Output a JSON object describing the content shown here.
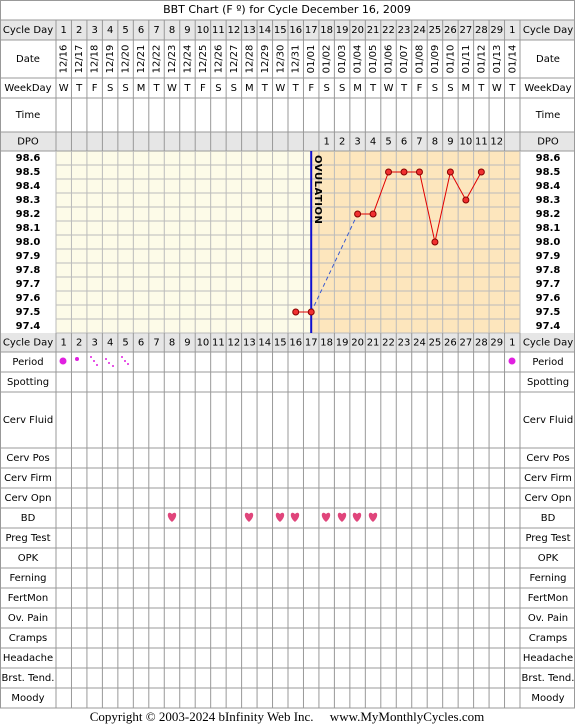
{
  "title": "BBT Chart (F º) for Cycle December 16, 2009",
  "chart_data": {
    "type": "line",
    "categories": [
      1,
      2,
      3,
      4,
      5,
      6,
      7,
      8,
      9,
      10,
      11,
      12,
      13,
      14,
      15,
      16,
      17,
      18,
      19,
      20,
      21,
      22,
      23,
      24,
      25,
      26,
      27,
      28,
      29,
      1
    ],
    "dates": [
      "12/16",
      "12/17",
      "12/18",
      "12/19",
      "12/20",
      "12/21",
      "12/22",
      "12/23",
      "12/24",
      "12/25",
      "12/26",
      "12/27",
      "12/28",
      "12/29",
      "12/30",
      "12/31",
      "01/01",
      "01/02",
      "01/03",
      "01/04",
      "01/05",
      "01/06",
      "01/07",
      "01/08",
      "01/09",
      "01/10",
      "01/11",
      "01/12",
      "01/13",
      "01/14"
    ],
    "weekdays": [
      "W",
      "T",
      "F",
      "S",
      "S",
      "M",
      "T",
      "W",
      "T",
      "F",
      "S",
      "S",
      "M",
      "T",
      "W",
      "T",
      "F",
      "S",
      "S",
      "M",
      "T",
      "W",
      "T",
      "F",
      "S",
      "S",
      "M",
      "T",
      "W",
      "T"
    ],
    "dpo": [
      null,
      null,
      null,
      null,
      null,
      null,
      null,
      null,
      null,
      null,
      null,
      null,
      null,
      null,
      null,
      null,
      null,
      1,
      2,
      3,
      4,
      5,
      6,
      7,
      8,
      9,
      10,
      11,
      12,
      null
    ],
    "series": [
      {
        "color": "#e00000",
        "values": [
          null,
          null,
          null,
          null,
          null,
          null,
          null,
          null,
          null,
          null,
          null,
          null,
          null,
          null,
          null,
          97.5,
          97.5,
          null,
          null,
          98.2,
          98.2,
          98.5,
          98.5,
          98.5,
          98.0,
          98.5,
          98.3,
          98.5,
          null,
          null
        ]
      }
    ],
    "ylim": [
      97.35,
      98.65
    ],
    "yticks": [
      98.6,
      98.5,
      98.4,
      98.3,
      {
        "value": 98.2,
        "label": "98.2"
      },
      98.1,
      {
        "value": 98.0,
        "label": "98.0"
      },
      97.9,
      97.8,
      97.7,
      97.6,
      97.5,
      97.4
    ],
    "ovulation_day": 17,
    "ovulation_label": "OVULATION",
    "ovulation_color": "#1010d0",
    "grid": true
  },
  "top_labels": [
    "Cycle Day",
    "Date",
    "WeekDay",
    "Time",
    "DPO"
  ],
  "bottom_labels": [
    "Cycle Day",
    "Period",
    "Spotting",
    "Cerv Fluid",
    "Cerv Pos",
    "Cerv Firm",
    "Cerv Opn",
    "BD",
    "Preg Test",
    "OPK",
    "Ferning",
    "FertMon",
    "Ov. Pain",
    "Cramps",
    "Headache",
    "Brst. Tend.",
    "Moody"
  ],
  "copyright": "Copyright © 2003-2024 bInfinity Web Inc.     www.MyMonthlyCycles.com"
}
